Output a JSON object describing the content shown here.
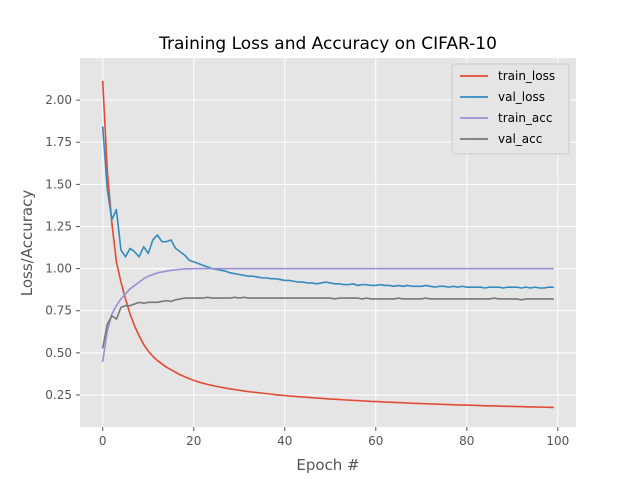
{
  "chart_data": {
    "type": "line",
    "title": "Training Loss and Accuracy on CIFAR-10",
    "xlabel": "Epoch #",
    "ylabel": "Loss/Accuracy",
    "xlim": [
      -5,
      104
    ],
    "ylim": [
      0.06,
      2.25
    ],
    "x_ticks": [
      0,
      20,
      40,
      60,
      80,
      100
    ],
    "y_ticks": [
      0.25,
      0.5,
      0.75,
      1.0,
      1.25,
      1.5,
      1.75,
      2.0
    ],
    "y_tick_labels": [
      "0.25",
      "0.50",
      "0.75",
      "1.00",
      "1.25",
      "1.50",
      "1.75",
      "2.00"
    ],
    "grid": true,
    "legend_position": "top-right",
    "series": [
      {
        "name": "train_loss",
        "color": "#E24A33",
        "values": [
          2.11,
          1.58,
          1.27,
          1.04,
          0.92,
          0.82,
          0.73,
          0.66,
          0.6,
          0.55,
          0.51,
          0.48,
          0.455,
          0.435,
          0.415,
          0.4,
          0.385,
          0.37,
          0.358,
          0.347,
          0.337,
          0.328,
          0.32,
          0.313,
          0.307,
          0.301,
          0.296,
          0.291,
          0.286,
          0.282,
          0.278,
          0.274,
          0.27,
          0.267,
          0.264,
          0.261,
          0.258,
          0.255,
          0.252,
          0.249,
          0.247,
          0.244,
          0.242,
          0.24,
          0.238,
          0.236,
          0.234,
          0.232,
          0.23,
          0.228,
          0.226,
          0.225,
          0.223,
          0.221,
          0.22,
          0.218,
          0.217,
          0.215,
          0.214,
          0.212,
          0.211,
          0.21,
          0.208,
          0.207,
          0.206,
          0.205,
          0.204,
          0.202,
          0.201,
          0.2,
          0.199,
          0.198,
          0.197,
          0.196,
          0.195,
          0.194,
          0.193,
          0.192,
          0.191,
          0.19,
          0.19,
          0.189,
          0.188,
          0.187,
          0.186,
          0.186,
          0.185,
          0.184,
          0.183,
          0.183,
          0.182,
          0.181,
          0.181,
          0.18,
          0.179,
          0.179,
          0.178,
          0.178,
          0.177,
          0.176
        ]
      },
      {
        "name": "val_loss",
        "color": "#348ABD",
        "values": [
          1.84,
          1.47,
          1.29,
          1.35,
          1.11,
          1.07,
          1.12,
          1.1,
          1.07,
          1.13,
          1.09,
          1.17,
          1.2,
          1.16,
          1.16,
          1.17,
          1.12,
          1.1,
          1.08,
          1.05,
          1.04,
          1.03,
          1.02,
          1.01,
          1.0,
          0.995,
          0.99,
          0.985,
          0.975,
          0.97,
          0.965,
          0.96,
          0.955,
          0.955,
          0.95,
          0.945,
          0.945,
          0.94,
          0.94,
          0.935,
          0.93,
          0.93,
          0.925,
          0.92,
          0.92,
          0.915,
          0.915,
          0.91,
          0.915,
          0.92,
          0.915,
          0.91,
          0.91,
          0.905,
          0.905,
          0.91,
          0.9,
          0.905,
          0.905,
          0.9,
          0.9,
          0.905,
          0.9,
          0.9,
          0.895,
          0.9,
          0.895,
          0.9,
          0.895,
          0.895,
          0.895,
          0.9,
          0.895,
          0.89,
          0.895,
          0.895,
          0.89,
          0.895,
          0.89,
          0.895,
          0.89,
          0.89,
          0.89,
          0.89,
          0.885,
          0.89,
          0.89,
          0.89,
          0.885,
          0.89,
          0.89,
          0.89,
          0.885,
          0.89,
          0.885,
          0.89,
          0.885,
          0.885,
          0.89,
          0.89
        ]
      },
      {
        "name": "train_acc",
        "color": "#988ED5",
        "values": [
          0.45,
          0.63,
          0.73,
          0.78,
          0.82,
          0.85,
          0.88,
          0.9,
          0.92,
          0.94,
          0.955,
          0.965,
          0.975,
          0.98,
          0.985,
          0.99,
          0.993,
          0.996,
          0.998,
          0.999,
          1.0,
          1.0,
          1.0,
          1.0,
          1.0,
          1.0,
          1.0,
          1.0,
          1.0,
          1.0,
          1.0,
          1.0,
          1.0,
          1.0,
          1.0,
          1.0,
          1.0,
          1.0,
          1.0,
          1.0,
          1.0,
          1.0,
          1.0,
          1.0,
          1.0,
          1.0,
          1.0,
          1.0,
          1.0,
          1.0,
          1.0,
          1.0,
          1.0,
          1.0,
          1.0,
          1.0,
          1.0,
          1.0,
          1.0,
          1.0,
          1.0,
          1.0,
          1.0,
          1.0,
          1.0,
          1.0,
          1.0,
          1.0,
          1.0,
          1.0,
          1.0,
          1.0,
          1.0,
          1.0,
          1.0,
          1.0,
          1.0,
          1.0,
          1.0,
          1.0,
          1.0,
          1.0,
          1.0,
          1.0,
          1.0,
          1.0,
          1.0,
          1.0,
          1.0,
          1.0,
          1.0,
          1.0,
          1.0,
          1.0,
          1.0,
          1.0,
          1.0,
          1.0,
          1.0,
          1.0
        ]
      },
      {
        "name": "val_acc",
        "color": "#777777",
        "values": [
          0.53,
          0.67,
          0.72,
          0.7,
          0.77,
          0.78,
          0.78,
          0.79,
          0.8,
          0.795,
          0.8,
          0.8,
          0.8,
          0.805,
          0.81,
          0.805,
          0.815,
          0.82,
          0.825,
          0.825,
          0.825,
          0.825,
          0.825,
          0.83,
          0.825,
          0.825,
          0.825,
          0.825,
          0.825,
          0.83,
          0.825,
          0.83,
          0.825,
          0.825,
          0.825,
          0.825,
          0.825,
          0.825,
          0.825,
          0.825,
          0.825,
          0.825,
          0.825,
          0.825,
          0.825,
          0.825,
          0.825,
          0.825,
          0.825,
          0.825,
          0.825,
          0.82,
          0.825,
          0.825,
          0.825,
          0.825,
          0.825,
          0.82,
          0.825,
          0.82,
          0.82,
          0.82,
          0.82,
          0.82,
          0.82,
          0.825,
          0.82,
          0.82,
          0.82,
          0.82,
          0.82,
          0.825,
          0.82,
          0.82,
          0.82,
          0.82,
          0.82,
          0.82,
          0.82,
          0.82,
          0.82,
          0.82,
          0.82,
          0.82,
          0.82,
          0.82,
          0.825,
          0.82,
          0.82,
          0.82,
          0.82,
          0.82,
          0.815,
          0.82,
          0.82,
          0.82,
          0.82,
          0.82,
          0.82,
          0.82
        ]
      }
    ]
  }
}
